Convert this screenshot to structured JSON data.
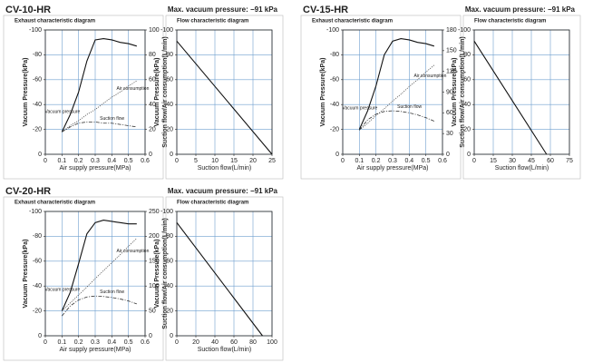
{
  "headers": [
    {
      "model": "CV-10-HR",
      "note": "Max. vacuum pressure: −91 kPa"
    },
    {
      "model": "CV-15-HR",
      "note": "Max. vacuum pressure: −91 kPa"
    },
    {
      "model": "CV-20-HR",
      "note": "Max. vacuum pressure: −91 kPa"
    }
  ],
  "chart_data": [
    {
      "type": "line",
      "title": "Exhaust characteristic diagram",
      "xlabel": "Air supply pressure(MPa)",
      "ylabel": "Vacuum Pressure(kPa)",
      "y2label": "Suction flow/Air consumption(L/min)",
      "x": [
        0.1,
        0.15,
        0.2,
        0.25,
        0.3,
        0.35,
        0.4,
        0.45,
        0.5,
        0.55
      ],
      "series": [
        {
          "name": "Vacuum pressure",
          "color": "#111111",
          "style": "solid",
          "values": [
            -18,
            -32,
            -50,
            -75,
            -92,
            -93,
            -92,
            -90,
            -89,
            -87
          ]
        },
        {
          "name": "Air consumption",
          "color": "#555555",
          "style": "dotted",
          "axis": "y2",
          "values": [
            18,
            23,
            27,
            32,
            36,
            41,
            46,
            50,
            55,
            59
          ]
        },
        {
          "name": "Suction flow",
          "color": "#333333",
          "style": "dashdot",
          "axis": "y2",
          "values": [
            18,
            22,
            25,
            26,
            26,
            25,
            25,
            24,
            23,
            22
          ]
        }
      ],
      "xlim": [
        0,
        0.6
      ],
      "xticks": [
        0,
        0.1,
        0.2,
        0.3,
        0.4,
        0.5,
        0.6
      ],
      "ylim": [
        0,
        -100
      ],
      "yticks": [
        0,
        -20,
        -40,
        -60,
        -80,
        -100
      ],
      "y2lim": [
        0,
        100
      ],
      "y2ticks": [
        0,
        20,
        40,
        60,
        80,
        100
      ],
      "grid": true
    },
    {
      "type": "line",
      "title": "Flow characteristic diagram",
      "xlabel": "Suction flow(L/min)",
      "ylabel": "Vacuum Pressure(kPa)",
      "x": [
        0,
        25
      ],
      "values": [
        -91,
        0
      ],
      "color": "#111111",
      "xlim": [
        0,
        25
      ],
      "xticks": [
        0,
        5,
        10,
        15,
        20,
        25
      ],
      "ylim": [
        0,
        -100
      ],
      "yticks": [
        0,
        -20,
        -40,
        -60,
        -80,
        -100
      ],
      "grid": true
    },
    {
      "type": "line",
      "title": "Exhaust characteristic diagram",
      "xlabel": "Air supply pressure(MPa)",
      "ylabel": "Vacuum Pressure(kPa)",
      "y2label": "Suction flow/Air consumption(L/min)",
      "x": [
        0.1,
        0.15,
        0.2,
        0.25,
        0.3,
        0.35,
        0.4,
        0.45,
        0.5,
        0.55
      ],
      "series": [
        {
          "name": "Vacuum pressure",
          "color": "#111111",
          "style": "solid",
          "values": [
            -20,
            -35,
            -55,
            -80,
            -91,
            -93,
            -92,
            -90,
            -89,
            -87
          ]
        },
        {
          "name": "Air consumption",
          "color": "#555555",
          "style": "dotted",
          "axis": "y2",
          "values": [
            35,
            45,
            56,
            66,
            77,
            87,
            98,
            108,
            119,
            129
          ]
        },
        {
          "name": "Suction flow",
          "color": "#333333",
          "style": "dashdot",
          "axis": "y2",
          "values": [
            35,
            50,
            58,
            62,
            63,
            62,
            60,
            57,
            53,
            48
          ]
        }
      ],
      "xlim": [
        0,
        0.6
      ],
      "xticks": [
        0,
        0.1,
        0.2,
        0.3,
        0.4,
        0.5,
        0.6
      ],
      "ylim": [
        0,
        -100
      ],
      "yticks": [
        0,
        -20,
        -40,
        -60,
        -80,
        -100
      ],
      "y2lim": [
        0,
        180
      ],
      "y2ticks": [
        0,
        30,
        60,
        90,
        120,
        150,
        180
      ],
      "grid": true
    },
    {
      "type": "line",
      "title": "Flow characteristic diagram",
      "xlabel": "Suction flow(L/min)",
      "ylabel": "Vacuum Pressure(kPa)",
      "x": [
        0,
        57
      ],
      "values": [
        -91,
        0
      ],
      "color": "#111111",
      "xlim": [
        0,
        75
      ],
      "xticks": [
        0,
        15,
        30,
        45,
        60,
        75
      ],
      "ylim": [
        0,
        -100
      ],
      "yticks": [
        0,
        -20,
        -40,
        -60,
        -80,
        -100
      ],
      "grid": true
    },
    {
      "type": "line",
      "title": "Exhaust characteristic diagram",
      "xlabel": "Air supply pressure(MPa)",
      "ylabel": "Vacuum Pressure(kPa)",
      "y2label": "Suction flow/Air consumption(L/min)",
      "x": [
        0.1,
        0.15,
        0.2,
        0.25,
        0.3,
        0.35,
        0.4,
        0.45,
        0.5,
        0.55
      ],
      "series": [
        {
          "name": "Vacuum pressure",
          "color": "#111111",
          "style": "solid",
          "values": [
            -20,
            -35,
            -58,
            -82,
            -91,
            -93,
            -92,
            -91,
            -90,
            -90
          ]
        },
        {
          "name": "Air consumption",
          "color": "#555555",
          "style": "dotted",
          "axis": "y2",
          "values": [
            50,
            66,
            82,
            98,
            115,
            131,
            147,
            163,
            180,
            196
          ]
        },
        {
          "name": "Suction flow",
          "color": "#333333",
          "style": "dashdot",
          "axis": "y2",
          "values": [
            40,
            60,
            72,
            78,
            80,
            79,
            77,
            74,
            70,
            64
          ]
        }
      ],
      "xlim": [
        0,
        0.6
      ],
      "xticks": [
        0,
        0.1,
        0.2,
        0.3,
        0.4,
        0.5,
        0.6
      ],
      "ylim": [
        0,
        -100
      ],
      "yticks": [
        0,
        -20,
        -40,
        -60,
        -80,
        -100
      ],
      "y2lim": [
        0,
        250
      ],
      "y2ticks": [
        0,
        50,
        100,
        150,
        200,
        250
      ],
      "grid": true
    },
    {
      "type": "line",
      "title": "Flow characteristic diagram",
      "xlabel": "Suction flow(L/min)",
      "ylabel": "Vacuum Pressure(kPa)",
      "x": [
        0,
        90
      ],
      "values": [
        -91,
        0
      ],
      "color": "#111111",
      "xlim": [
        0,
        100
      ],
      "xticks": [
        0,
        20,
        40,
        60,
        80,
        100
      ],
      "ylim": [
        0,
        -100
      ],
      "yticks": [
        0,
        -20,
        -40,
        -60,
        -80,
        -100
      ],
      "grid": true
    }
  ]
}
